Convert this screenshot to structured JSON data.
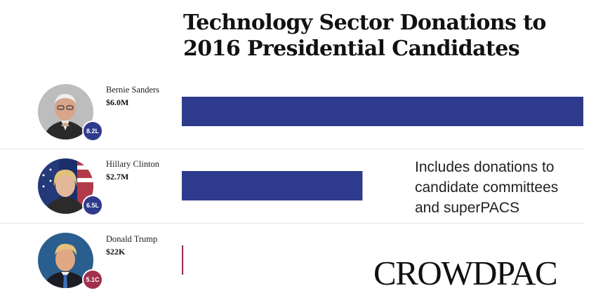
{
  "chart_data": {
    "type": "bar",
    "orientation": "horizontal",
    "title": "Technology Sector Donations to 2016 Presidential Candidates",
    "unit": "USD",
    "categories": [
      "Bernie Sanders",
      "Hillary Clinton",
      "Donald Trump"
    ],
    "values": [
      6000000,
      2700000,
      22000
    ],
    "value_labels": [
      "$6.0M",
      "$2.7M",
      "$22K"
    ],
    "badges": [
      "8.2L",
      "6.5L",
      "5.1C"
    ],
    "bar_colors": [
      "#2e3a8c",
      "#2e3a8c",
      "#a0304e"
    ],
    "xlim": [
      0,
      6000000
    ],
    "grid": false,
    "legend": "none"
  },
  "note": {
    "lines": [
      "Includes donations to",
      "candidate committees",
      "and superPACS"
    ]
  },
  "brand": {
    "logo_text": "CROWDPAC"
  },
  "colors": {
    "accent_blue": "#2e3a8c",
    "accent_red": "#a0304e",
    "divider": "#e9e1ec"
  }
}
